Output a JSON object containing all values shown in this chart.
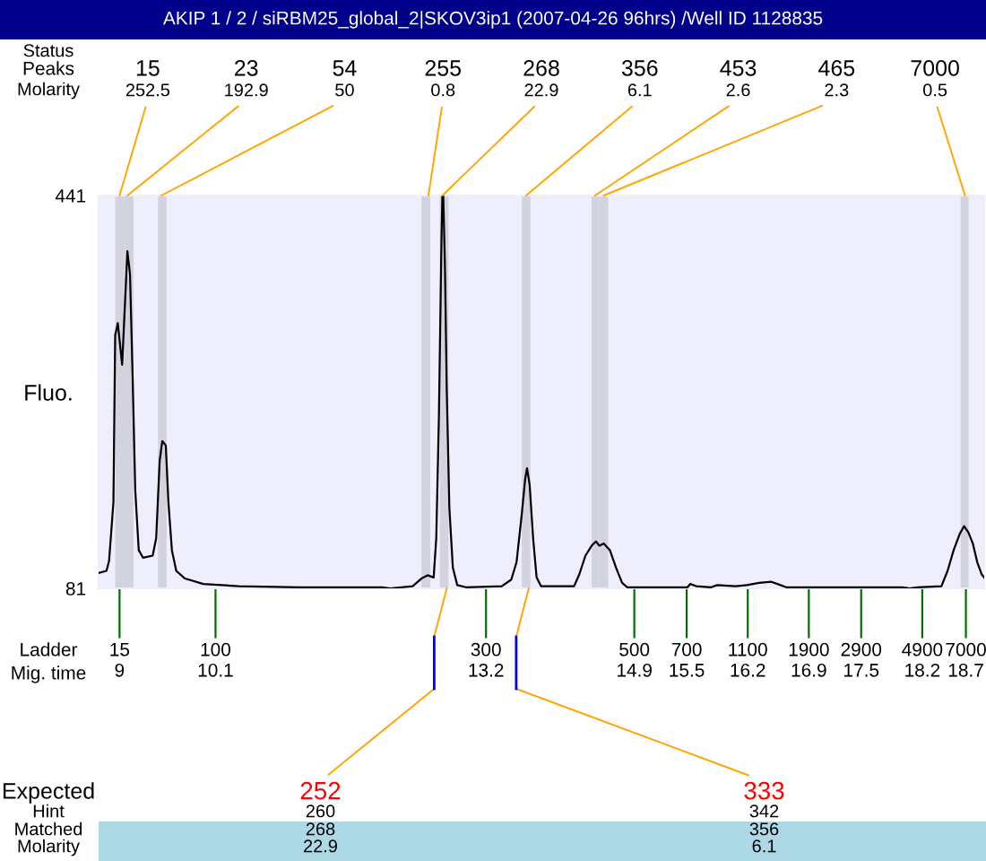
{
  "chart_data": {
    "type": "line",
    "title": "AKIP 1 / 2 / siRBM25_global_2|SKOV3ip1 (2007-04-26 96hrs) /Well ID 1128835",
    "ylabel": "Fluo.",
    "xlabel": "Mig. time",
    "color": "#000000",
    "x": [
      8.76,
      8.85,
      8.88,
      8.93,
      8.95,
      8.98,
      9.03,
      9.09,
      9.12,
      9.15,
      9.18,
      9.22,
      9.27,
      9.38,
      9.42,
      9.46,
      9.49,
      9.53,
      9.56,
      9.6,
      9.65,
      9.75,
      9.96,
      10.37,
      11.06,
      12.01,
      12.1,
      12.36,
      12.46,
      12.53,
      12.6,
      12.63,
      12.66,
      12.69,
      12.7,
      12.71,
      12.73,
      12.75,
      12.78,
      12.82,
      12.87,
      12.97,
      13.38,
      13.49,
      13.55,
      13.61,
      13.65,
      13.67,
      13.7,
      13.74,
      13.78,
      13.83,
      14.21,
      14.27,
      14.34,
      14.41,
      14.46,
      14.5,
      14.55,
      14.62,
      14.69,
      14.76,
      14.82,
      15.51,
      15.54,
      15.61,
      15.78,
      15.85,
      16.06,
      16.19,
      16.33,
      16.47,
      16.54,
      16.64,
      17.97,
      18.06,
      18.15,
      18.42,
      18.49,
      18.56,
      18.63,
      18.68,
      18.73,
      18.78,
      18.83,
      18.88,
      18.91
    ],
    "values": [
      95,
      97,
      106,
      160,
      313,
      324,
      286,
      390,
      369,
      275,
      171,
      116,
      109,
      111,
      127,
      198,
      216,
      212,
      160,
      116,
      97,
      90,
      85,
      83,
      82,
      82,
      81,
      83,
      90,
      93,
      91,
      127,
      237,
      402,
      441,
      441,
      374,
      264,
      155,
      100,
      84,
      82,
      83,
      89,
      105,
      149,
      182,
      191,
      176,
      127,
      91,
      83,
      83,
      94,
      111,
      120,
      124,
      120,
      122,
      116,
      100,
      86,
      82,
      82,
      85,
      83,
      82,
      84,
      83,
      84,
      86,
      87,
      85,
      82,
      82,
      81,
      82,
      83,
      97,
      116,
      131,
      138,
      132,
      122,
      105,
      94,
      91
    ],
    "xlim": [
      8.76,
      18.91
    ],
    "ylim": [
      81,
      441
    ],
    "yticks": [
      81,
      441
    ],
    "xticks": [
      9,
      10.1,
      13.2,
      14.9,
      15.5,
      16.2,
      16.9,
      17.5,
      18.2,
      18.7
    ],
    "bands": [
      {
        "axis": "x",
        "from": 8.95,
        "to": 9.05,
        "color": "#d3d3df"
      },
      {
        "axis": "x",
        "from": 9.05,
        "to": 9.16,
        "color": "#d3d3df"
      },
      {
        "axis": "x",
        "from": 9.44,
        "to": 9.54,
        "color": "#d3d3df"
      },
      {
        "axis": "x",
        "from": 12.46,
        "to": 12.56,
        "color": "#d3d3df"
      },
      {
        "axis": "x",
        "from": 12.67,
        "to": 12.77,
        "color": "#d3d3df"
      },
      {
        "axis": "x",
        "from": 13.61,
        "to": 13.71,
        "color": "#d3d3df"
      },
      {
        "axis": "x",
        "from": 14.41,
        "to": 14.5,
        "color": "#d3d3df"
      },
      {
        "axis": "x",
        "from": 14.5,
        "to": 14.6,
        "color": "#d3d3df"
      },
      {
        "axis": "x",
        "from": 18.64,
        "to": 18.73,
        "color": "#d3d3df"
      }
    ],
    "annotations": [
      "Status",
      "Peaks",
      "Molarity",
      {
        "text": "15\n252.5",
        "x": 9.0,
        "y": 441
      },
      {
        "text": "23\n192.9",
        "x": 9.09,
        "y": 441
      },
      {
        "text": "54\n50",
        "x": 9.48,
        "y": 441
      },
      {
        "text": "255\n0.8",
        "x": 12.54,
        "y": 441
      },
      {
        "text": "268\n22.9",
        "x": 12.7,
        "y": 441
      },
      {
        "text": "356\n6.1",
        "x": 13.66,
        "y": 441
      },
      {
        "text": "453\n2.6",
        "x": 14.45,
        "y": 441
      },
      {
        "text": "465\n2.3",
        "x": 14.55,
        "y": 441
      },
      {
        "text": "7000\n0.5",
        "x": 18.69,
        "y": 441
      },
      "Ladder",
      "15",
      "100",
      "300",
      "500",
      "700",
      "1100",
      "1900",
      "2900",
      "4900",
      "7000",
      "Expected",
      "Hint",
      "Matched",
      "Molarity",
      {
        "text": "252",
        "x": 12.75,
        "y": 81
      },
      {
        "text": "333",
        "x": 13.69,
        "y": 81
      },
      "260",
      "342",
      "268",
      "356",
      "22.9",
      "6.1"
    ]
  }
}
